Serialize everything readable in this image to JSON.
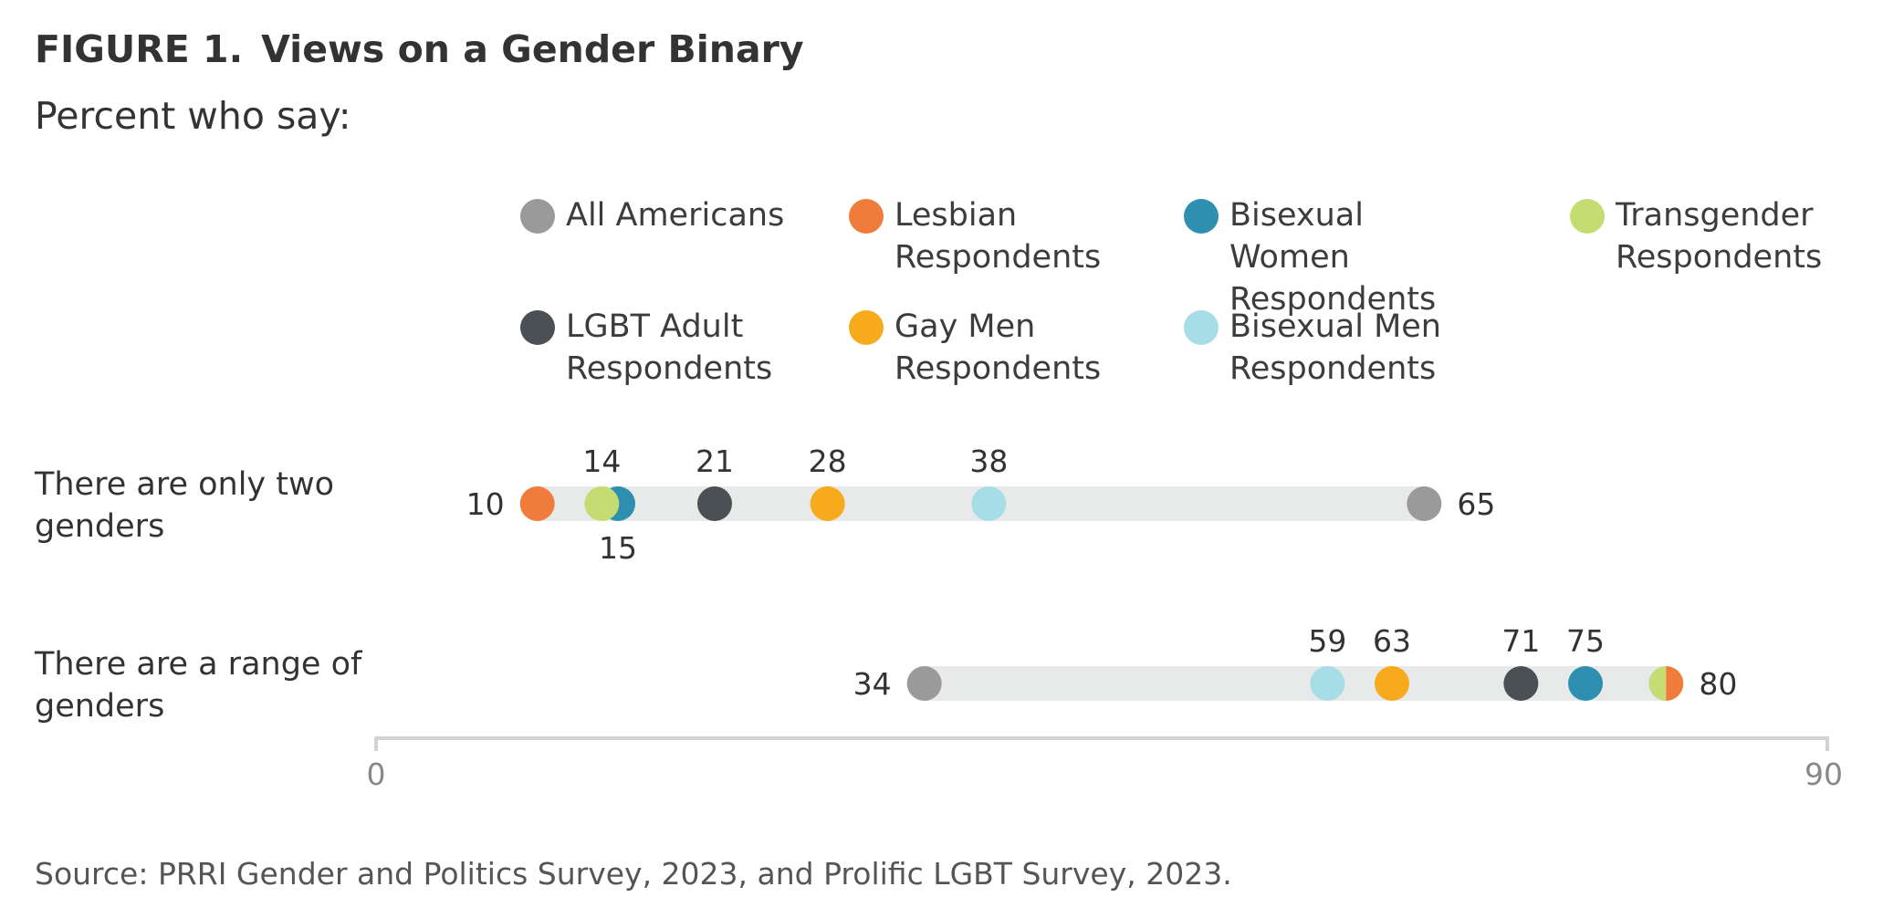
{
  "title_prefix": "FIGURE 1.",
  "title_text": "Views on a Gender Binary",
  "subtitle": "Percent who say:",
  "source": "Source: PRRI Gender and Politics Survey, 2023, and Prolific LGBT Survey, 2023.",
  "legend": [
    {
      "line1": "All Americans",
      "line2": "",
      "color": "#9a9a9a"
    },
    {
      "line1": "Lesbian",
      "line2": "Respondents",
      "color": "#f07c3c"
    },
    {
      "line1": "Bisexual Women",
      "line2": "Respondents",
      "color": "#2f8fb0"
    },
    {
      "line1": "Transgender",
      "line2": "Respondents",
      "color": "#c4dc72"
    },
    {
      "line1": "LGBT Adult",
      "line2": "Respondents",
      "color": "#4a5053"
    },
    {
      "line1": "Gay Men",
      "line2": "Respondents",
      "color": "#f6aa1c"
    },
    {
      "line1": "Bisexual Men",
      "line2": "Respondents",
      "color": "#a7dde6"
    }
  ],
  "chart_data": {
    "type": "dot-range",
    "title": "Views on a Gender Binary",
    "subtitle": "Percent who say:",
    "xlim": [
      0,
      90
    ],
    "tick_labels": [
      "0",
      "90"
    ],
    "categories": [
      {
        "line1": "There are only two",
        "line2": "genders"
      },
      {
        "line1": "There are a range of",
        "line2": "genders"
      }
    ],
    "series": [
      {
        "name": "All Americans",
        "color": "#9a9a9a",
        "values": [
          65,
          34
        ]
      },
      {
        "name": "Lesbian Respondents",
        "color": "#f07c3c",
        "values": [
          10,
          80
        ]
      },
      {
        "name": "Bisexual Women Respondents",
        "color": "#2f8fb0",
        "values": [
          15,
          75
        ]
      },
      {
        "name": "Transgender Respondents",
        "color": "#c4dc72",
        "values": [
          14,
          80
        ]
      },
      {
        "name": "LGBT Adult Respondents",
        "color": "#4a5053",
        "values": [
          21,
          71
        ]
      },
      {
        "name": "Gay Men Respondents",
        "color": "#f6aa1c",
        "values": [
          28,
          63
        ]
      },
      {
        "name": "Bisexual Men Respondents",
        "color": "#a7dde6",
        "values": [
          38,
          59
        ]
      }
    ],
    "data_labels": [
      [
        {
          "text": "10",
          "value": 10,
          "pos": "left"
        },
        {
          "text": "14",
          "value": 14,
          "pos": "above"
        },
        {
          "text": "15",
          "value": 15,
          "pos": "below"
        },
        {
          "text": "21",
          "value": 21,
          "pos": "above"
        },
        {
          "text": "28",
          "value": 28,
          "pos": "above"
        },
        {
          "text": "38",
          "value": 38,
          "pos": "above"
        },
        {
          "text": "65",
          "value": 65,
          "pos": "right"
        }
      ],
      [
        {
          "text": "34",
          "value": 34,
          "pos": "left"
        },
        {
          "text": "59",
          "value": 59,
          "pos": "above"
        },
        {
          "text": "63",
          "value": 63,
          "pos": "above"
        },
        {
          "text": "71",
          "value": 71,
          "pos": "above"
        },
        {
          "text": "75",
          "value": 75,
          "pos": "above"
        },
        {
          "text": "80",
          "value": 80,
          "pos": "right"
        }
      ]
    ]
  }
}
